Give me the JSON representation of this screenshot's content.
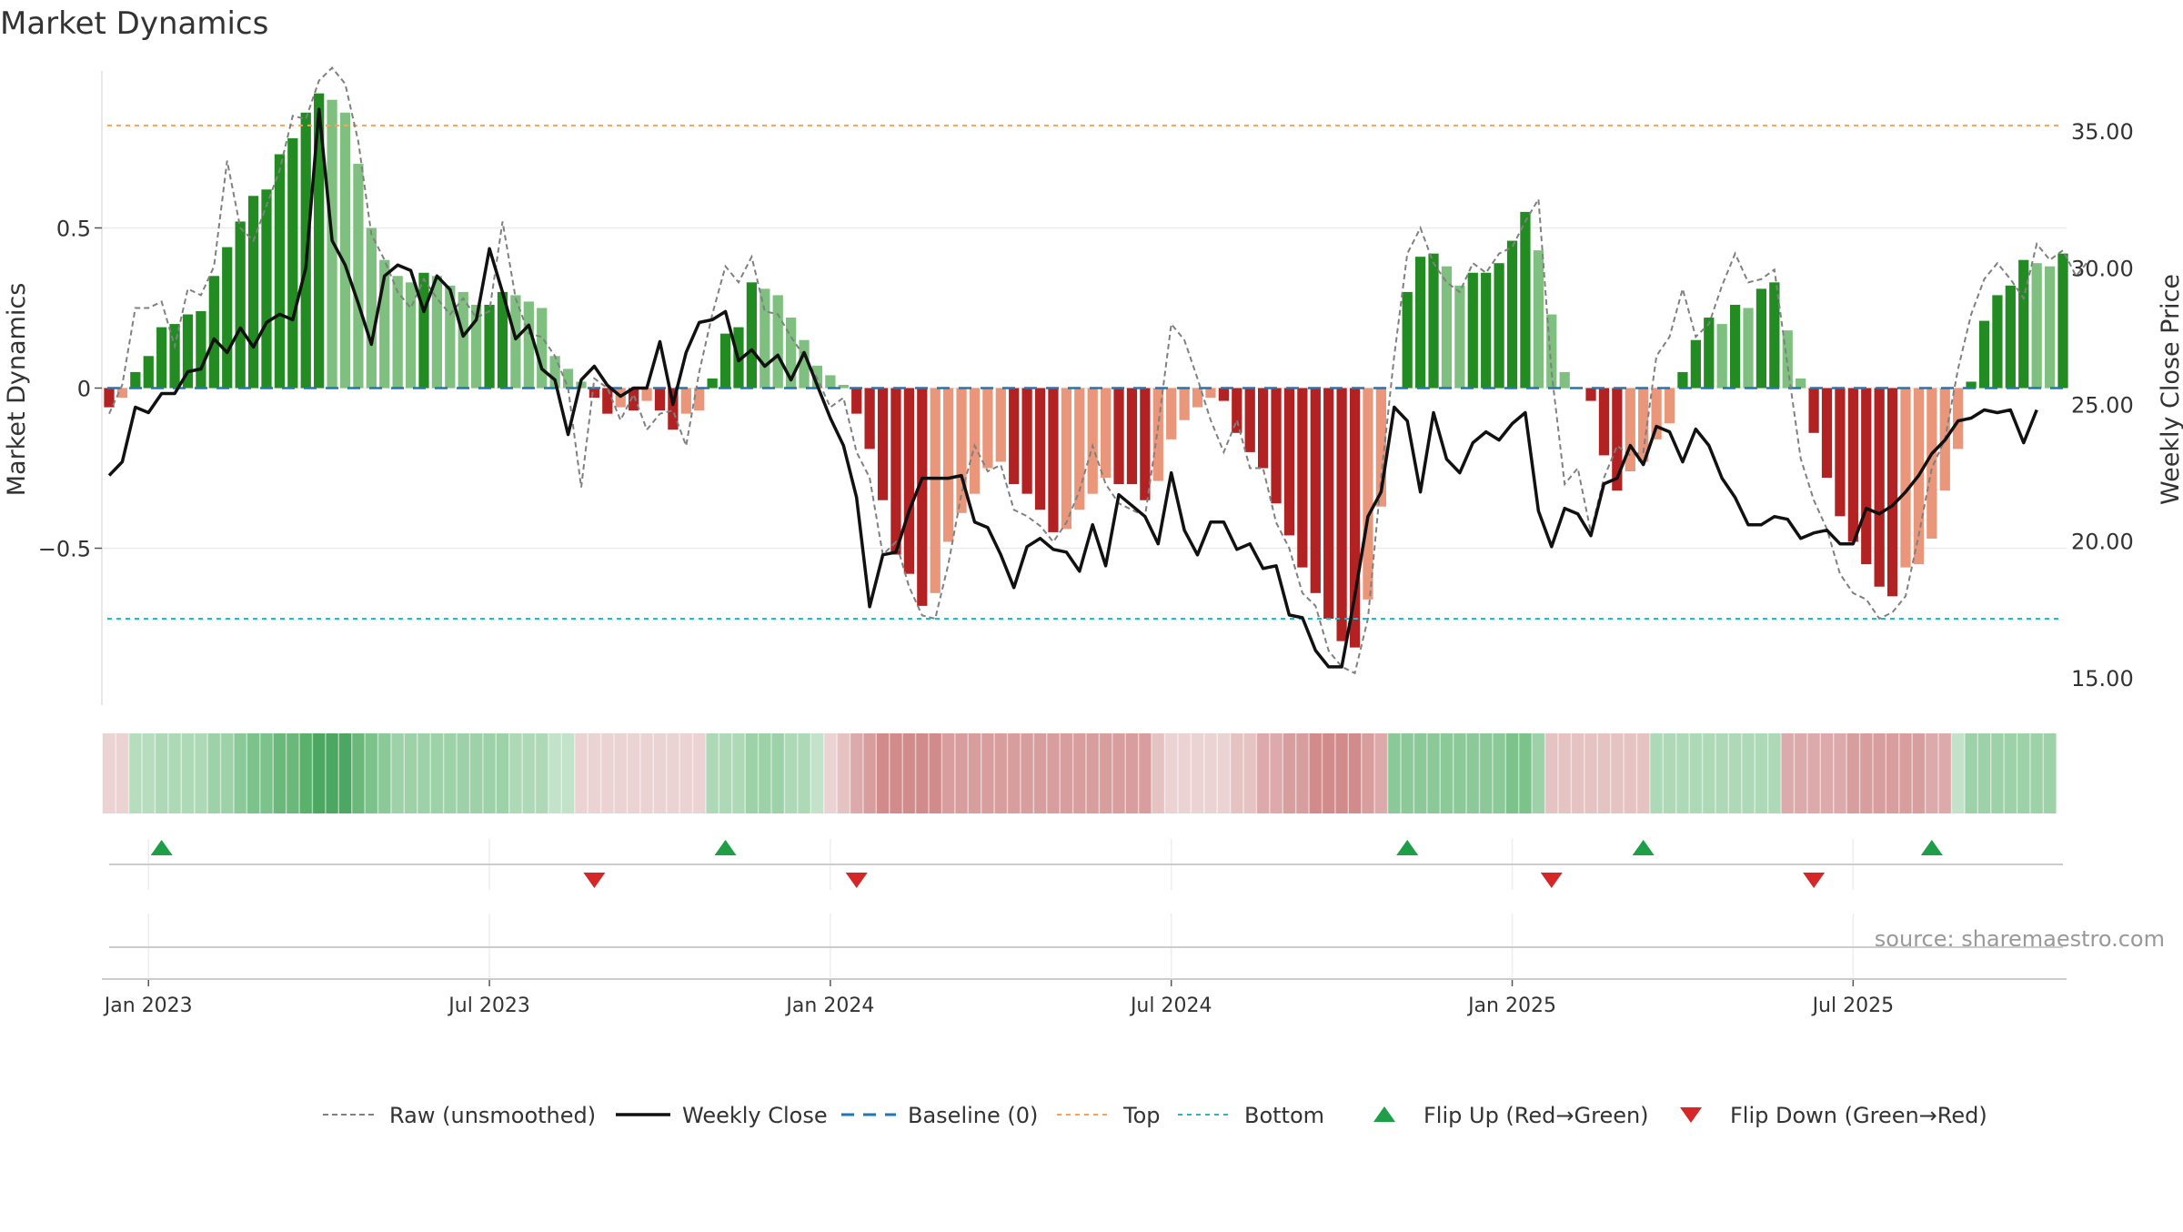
{
  "chart_data": {
    "type": "bar",
    "title": "Market Dynamics",
    "ylabel_left": "Market Dynamics",
    "ylabel_right": "Weekly Close Price",
    "source": "source: sharemaestro.com",
    "ylim_left": [
      -0.99,
      0.99
    ],
    "ylim_right": [
      14.0,
      37.2
    ],
    "left_ticks": [
      {
        "value": 0.5,
        "label": "0.5"
      },
      {
        "value": 0,
        "label": "0"
      },
      {
        "value": -0.5,
        "label": "−0.5"
      }
    ],
    "right_ticks": [
      {
        "value": 35,
        "label": "35.00"
      },
      {
        "value": 30,
        "label": "30.00"
      },
      {
        "value": 25,
        "label": "25.00"
      },
      {
        "value": 20,
        "label": "20.00"
      },
      {
        "value": 15,
        "label": "15.00"
      }
    ],
    "x_ticks": [
      {
        "index": 3,
        "label": "Jan 2023"
      },
      {
        "index": 29,
        "label": "Jul 2023"
      },
      {
        "index": 55,
        "label": "Jan 2024"
      },
      {
        "index": 81,
        "label": "Jul 2024"
      },
      {
        "index": 107,
        "label": "Jan 2025"
      },
      {
        "index": 133,
        "label": "Jul 2025"
      }
    ],
    "top_threshold": 0.82,
    "bottom_threshold": -0.72,
    "start_week": "2022-12-12",
    "dynamics": [
      -0.06,
      -0.03,
      0.05,
      0.1,
      0.19,
      0.2,
      0.23,
      0.24,
      0.35,
      0.44,
      0.52,
      0.6,
      0.62,
      0.73,
      0.78,
      0.86,
      0.92,
      0.9,
      0.86,
      0.7,
      0.5,
      0.4,
      0.35,
      0.33,
      0.36,
      0.35,
      0.32,
      0.3,
      0.26,
      0.26,
      0.3,
      0.29,
      0.27,
      0.25,
      0.1,
      0.06,
      0.02,
      -0.03,
      -0.08,
      -0.06,
      -0.07,
      -0.04,
      -0.07,
      -0.13,
      -0.08,
      -0.07,
      0.03,
      0.17,
      0.19,
      0.33,
      0.31,
      0.29,
      0.22,
      0.15,
      0.07,
      0.04,
      0.01,
      -0.08,
      -0.19,
      -0.35,
      -0.52,
      -0.58,
      -0.68,
      -0.64,
      -0.48,
      -0.39,
      -0.33,
      -0.25,
      -0.23,
      -0.3,
      -0.33,
      -0.38,
      -0.45,
      -0.44,
      -0.38,
      -0.33,
      -0.28,
      -0.3,
      -0.3,
      -0.35,
      -0.29,
      -0.16,
      -0.1,
      -0.06,
      -0.03,
      -0.04,
      -0.14,
      -0.2,
      -0.25,
      -0.36,
      -0.46,
      -0.56,
      -0.64,
      -0.72,
      -0.79,
      -0.81,
      -0.66,
      -0.37,
      0.0,
      0.3,
      0.41,
      0.42,
      0.38,
      0.32,
      0.36,
      0.36,
      0.39,
      0.46,
      0.55,
      0.43,
      0.23,
      0.05,
      0.0,
      -0.04,
      -0.21,
      -0.32,
      -0.26,
      -0.23,
      -0.16,
      -0.11,
      0.05,
      0.15,
      0.22,
      0.2,
      0.26,
      0.25,
      0.31,
      0.33,
      0.18,
      0.03,
      -0.14,
      -0.28,
      -0.4,
      -0.48,
      -0.55,
      -0.62,
      -0.65,
      -0.56,
      -0.55,
      -0.47,
      -0.32,
      -0.19,
      0.02,
      0.21,
      0.29,
      0.32,
      0.4,
      0.39,
      0.38,
      0.42
    ],
    "raw": [
      -0.08,
      0.01,
      0.25,
      0.25,
      0.27,
      0.13,
      0.31,
      0.29,
      0.38,
      0.71,
      0.5,
      0.46,
      0.57,
      0.68,
      0.85,
      0.84,
      0.96,
      1.0,
      0.95,
      0.77,
      0.48,
      0.4,
      0.3,
      0.25,
      0.34,
      0.28,
      0.23,
      0.28,
      0.22,
      0.24,
      0.52,
      0.28,
      0.17,
      0.16,
      0.1,
      0.0,
      -0.31,
      0.03,
      0.0,
      -0.1,
      -0.02,
      -0.13,
      -0.08,
      -0.07,
      -0.18,
      0.05,
      0.23,
      0.38,
      0.33,
      0.41,
      0.24,
      0.23,
      0.16,
      0.1,
      0.03,
      -0.06,
      -0.03,
      -0.2,
      -0.28,
      -0.52,
      -0.48,
      -0.62,
      -0.71,
      -0.72,
      -0.55,
      -0.33,
      -0.18,
      -0.26,
      -0.24,
      -0.38,
      -0.4,
      -0.43,
      -0.48,
      -0.42,
      -0.32,
      -0.18,
      -0.3,
      -0.36,
      -0.38,
      -0.4,
      -0.12,
      0.2,
      0.15,
      0.03,
      -0.1,
      -0.2,
      -0.1,
      -0.25,
      -0.25,
      -0.42,
      -0.5,
      -0.64,
      -0.68,
      -0.82,
      -0.87,
      -0.89,
      -0.72,
      -0.28,
      0.1,
      0.42,
      0.5,
      0.39,
      0.33,
      0.3,
      0.39,
      0.36,
      0.42,
      0.44,
      0.52,
      0.59,
      0.05,
      -0.3,
      -0.25,
      -0.45,
      -0.28,
      -0.18,
      -0.21,
      -0.2,
      0.1,
      0.16,
      0.31,
      0.16,
      0.2,
      0.32,
      0.42,
      0.33,
      0.34,
      0.37,
      0.07,
      -0.22,
      -0.35,
      -0.44,
      -0.58,
      -0.64,
      -0.66,
      -0.72,
      -0.7,
      -0.65,
      -0.46,
      -0.25,
      -0.16,
      0.06,
      0.23,
      0.34,
      0.39,
      0.34,
      0.28,
      0.45,
      0.4,
      0.43,
      0.35,
      0.4
    ],
    "close": [
      22.4,
      22.9,
      24.9,
      24.7,
      25.4,
      25.4,
      26.2,
      26.3,
      27.4,
      26.9,
      27.8,
      27.1,
      28.0,
      28.3,
      28.1,
      30.0,
      35.8,
      31.0,
      30.1,
      28.7,
      27.2,
      29.7,
      30.1,
      29.9,
      28.4,
      29.7,
      29.2,
      27.5,
      28.1,
      30.7,
      29.1,
      27.4,
      27.9,
      26.3,
      25.9,
      23.9,
      25.9,
      26.4,
      25.7,
      25.3,
      25.6,
      25.6,
      27.3,
      25.0,
      26.9,
      28.0,
      28.1,
      28.4,
      26.6,
      27.0,
      26.4,
      26.8,
      25.9,
      26.9,
      25.7,
      24.5,
      23.5,
      21.6,
      17.6,
      19.5,
      19.6,
      21.1,
      22.3,
      22.3,
      22.3,
      22.4,
      20.7,
      20.5,
      19.5,
      18.3,
      19.8,
      20.1,
      19.7,
      19.6,
      18.9,
      20.6,
      19.1,
      21.7,
      21.3,
      20.9,
      19.9,
      22.5,
      20.4,
      19.5,
      20.7,
      20.7,
      19.7,
      19.9,
      19.0,
      19.1,
      17.3,
      17.2,
      16.0,
      15.4,
      15.4,
      18.0,
      20.9,
      21.8,
      24.9,
      24.4,
      21.8,
      24.7,
      23.0,
      22.5,
      23.6,
      24.0,
      23.7,
      24.3,
      24.7,
      21.1,
      19.8,
      21.2,
      21.0,
      20.2,
      22.1,
      22.3,
      23.5,
      22.8,
      24.2,
      24.0,
      22.9,
      24.1,
      23.5,
      22.3,
      21.6,
      20.6,
      20.6,
      20.9,
      20.8,
      20.1,
      20.3,
      20.4,
      19.9,
      19.9,
      21.2,
      21.0,
      21.3,
      21.8,
      22.4,
      23.2,
      23.7,
      24.4,
      24.5,
      24.8,
      24.7,
      24.8,
      23.6,
      24.8
    ],
    "strip_colors": [
      "#ecd3d3",
      "#ecd3d3",
      "#b7ddbf",
      "#b7ddbf",
      "#aed9b7",
      "#aed9b7",
      "#aed9b7",
      "#aed9b7",
      "#9dd1a8",
      "#9dd1a8",
      "#8cc999",
      "#7cc28b",
      "#7cc28b",
      "#6ab97b",
      "#6ab97b",
      "#59b16c",
      "#4ba761",
      "#4ba761",
      "#4ba761",
      "#6ab97b",
      "#7cc28b",
      "#8cc999",
      "#9dd1a8",
      "#9dd1a8",
      "#9dd1a8",
      "#9dd1a8",
      "#9dd1a8",
      "#9dd1a8",
      "#9dd1a8",
      "#9dd1a8",
      "#9dd1a8",
      "#aed9b7",
      "#aed9b7",
      "#aed9b7",
      "#c2e2c9",
      "#c2e2c9",
      "#ecd3d3",
      "#ecd3d3",
      "#ecd3d3",
      "#ecd3d3",
      "#ecd3d3",
      "#ecd3d3",
      "#ecd3d3",
      "#ecd3d3",
      "#ecd3d3",
      "#ecd3d3",
      "#aed9b7",
      "#aed9b7",
      "#aed9b7",
      "#9dd1a8",
      "#9dd1a8",
      "#9dd1a8",
      "#aed9b7",
      "#aed9b7",
      "#c2e2c9",
      "#ecd3d3",
      "#e6c3c3",
      "#dcaaaa",
      "#d89e9e",
      "#d28b8b",
      "#d28b8b",
      "#d28b8b",
      "#d28b8b",
      "#d28b8b",
      "#d89e9e",
      "#d89e9e",
      "#d89e9e",
      "#d89e9e",
      "#d89e9e",
      "#d89e9e",
      "#d89e9e",
      "#d89e9e",
      "#d89e9e",
      "#d89e9e",
      "#d89e9e",
      "#d89e9e",
      "#d89e9e",
      "#d89e9e",
      "#d89e9e",
      "#d89e9e",
      "#e6c3c3",
      "#ecd3d3",
      "#ecd3d3",
      "#ecd3d3",
      "#ecd3d3",
      "#ecd3d3",
      "#e6c3c3",
      "#e6c3c3",
      "#dcaaaa",
      "#dcaaaa",
      "#d89e9e",
      "#d89e9e",
      "#d28b8b",
      "#d28b8b",
      "#d28b8b",
      "#d28b8b",
      "#d89e9e",
      "#dcaaaa",
      "#8cc999",
      "#8cc999",
      "#8cc999",
      "#8cc999",
      "#8cc999",
      "#8cc999",
      "#8cc999",
      "#8cc999",
      "#8cc999",
      "#7cc28b",
      "#7cc28b",
      "#9dd1a8",
      "#e6c3c3",
      "#e6c3c3",
      "#e6c3c3",
      "#e6c3c3",
      "#e6c3c3",
      "#e6c3c3",
      "#e6c3c3",
      "#e6c3c3",
      "#aed9b7",
      "#aed9b7",
      "#aed9b7",
      "#aed9b7",
      "#aed9b7",
      "#aed9b7",
      "#aed9b7",
      "#aed9b7",
      "#aed9b7",
      "#aed9b7",
      "#dcaaaa",
      "#dcaaaa",
      "#dcaaaa",
      "#dcaaaa",
      "#dcaaaa",
      "#d89e9e",
      "#d89e9e",
      "#d89e9e",
      "#d89e9e",
      "#d89e9e",
      "#d89e9e",
      "#dcaaaa",
      "#dcaaaa",
      "#c2e2c9",
      "#9dd1a8",
      "#9dd1a8",
      "#9dd1a8",
      "#9dd1a8",
      "#9dd1a8",
      "#9dd1a8",
      "#9dd1a8"
    ],
    "flip_up_indices": [
      4,
      47,
      99,
      117,
      139
    ],
    "flip_down_indices": [
      37,
      57,
      110,
      130
    ],
    "colors": {
      "strong_green": "#228b22",
      "light_green": "#7fbf7f",
      "strong_red": "#b22222",
      "light_red": "#e9967a",
      "close_line": "#111111",
      "raw_line": "#808080",
      "baseline": "#1f77b4",
      "top": "#f4a460",
      "bottom": "#17becf",
      "flip_up": "#1e9e46",
      "flip_down": "#d62728"
    },
    "legend": [
      {
        "key": "raw",
        "label": "Raw (unsmoothed)",
        "icon": "dashed-gray-line"
      },
      {
        "key": "close",
        "label": "Weekly Close",
        "icon": "solid-black-line"
      },
      {
        "key": "baseline",
        "label": "Baseline (0)",
        "icon": "dashed-blue-line"
      },
      {
        "key": "top",
        "label": "Top",
        "icon": "dotted-orange-line"
      },
      {
        "key": "bottom",
        "label": "Bottom",
        "icon": "dotted-cyan-line"
      },
      {
        "key": "flip_up",
        "label": "Flip Up (Red→Green)",
        "icon": "triangle-up"
      },
      {
        "key": "flip_down",
        "label": "Flip Down (Green→Red)",
        "icon": "triangle-down"
      }
    ],
    "legend_position": "bottom-center"
  }
}
